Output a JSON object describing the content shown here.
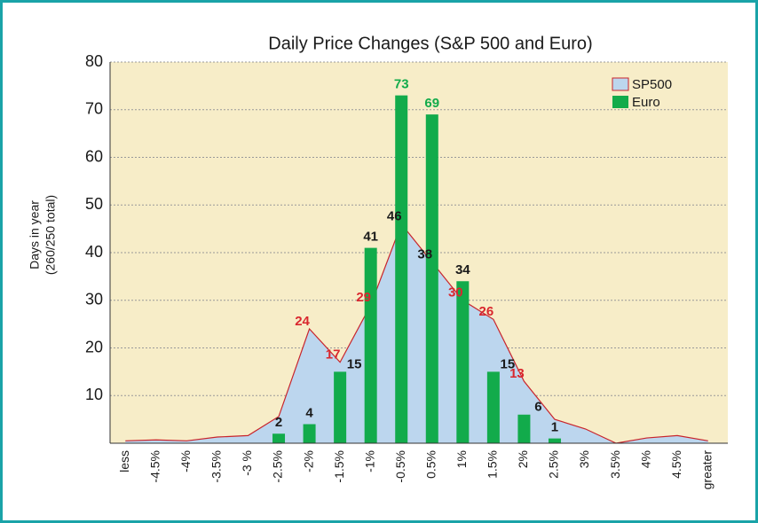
{
  "chart_data": {
    "type": "bar_area",
    "title": "Daily Price Changes (S&P 500 and Euro)",
    "ylabel": [
      "Days in year",
      "(260/250 total)"
    ],
    "categories": [
      "less",
      "-4.5%",
      "-4%",
      "-3.5%",
      "-3 %",
      "-2.5%",
      "-2%",
      "-1.5%",
      "-1%",
      "-0.5%",
      "0.5%",
      "1%",
      "1.5%",
      "2%",
      "2.5%",
      "3%",
      "3.5%",
      "4%",
      "4.5%",
      "greater"
    ],
    "series": [
      {
        "name": "SP500",
        "kind": "area",
        "color": "#bcd6ee",
        "stroke": "#c8242c",
        "values": [
          0.5,
          0.7,
          0.5,
          1.3,
          1.6,
          5.6,
          24,
          17,
          29,
          46,
          38,
          30,
          26,
          13,
          5,
          3,
          0,
          1.1,
          1.6,
          0.5
        ],
        "value_labels": [
          null,
          null,
          null,
          null,
          null,
          null,
          "24",
          "17",
          "29",
          "46",
          "38",
          "30",
          "26",
          "13",
          null,
          null,
          null,
          null,
          null,
          null
        ],
        "value_label_colors": [
          null,
          null,
          null,
          null,
          null,
          null,
          "#d9272e",
          "#d9272e",
          "#d9272e",
          "#1a1a1a",
          "#1a1a1a",
          "#d9272e",
          "#d9272e",
          "#d9272e",
          null,
          null,
          null,
          null,
          null,
          null
        ]
      },
      {
        "name": "Euro",
        "kind": "bar",
        "color": "#12ab4b",
        "values": [
          0,
          0,
          0,
          0,
          0,
          2,
          4,
          15,
          41,
          73,
          69,
          34,
          15,
          6,
          1,
          0,
          0,
          0,
          0,
          0
        ],
        "value_labels": [
          null,
          null,
          null,
          null,
          null,
          "2",
          "4",
          "15",
          "41",
          "73",
          "69",
          "34",
          "15",
          "6",
          "1",
          null,
          null,
          null,
          null,
          null
        ],
        "value_label_colors": [
          null,
          null,
          null,
          null,
          null,
          "#1a1a1a",
          "#1a1a1a",
          "#1a1a1a",
          "#1a1a1a",
          "#12ab4b",
          "#12ab4b",
          "#1a1a1a",
          "#1a1a1a",
          "#1a1a1a",
          "#1a1a1a",
          null,
          null,
          null,
          null,
          null
        ]
      }
    ],
    "ylim": [
      0,
      80
    ],
    "yticks": [
      10,
      20,
      30,
      40,
      50,
      60,
      70,
      80
    ],
    "grid": true,
    "legend": "upper right",
    "background": "#f7edc8"
  }
}
